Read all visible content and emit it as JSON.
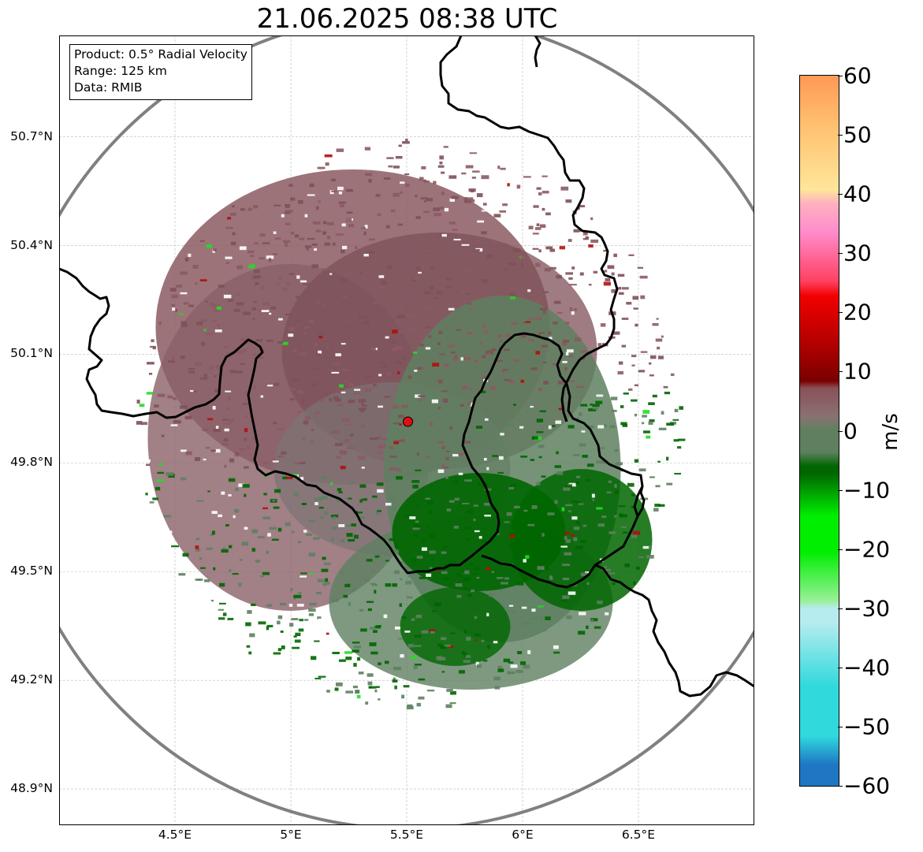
{
  "title": "21.06.2025 08:38 UTC",
  "info_box": {
    "product": "Product: 0.5° Radial Velocity",
    "range": "Range: 125 km",
    "data": "Data: RMIB"
  },
  "map": {
    "lon_range": [
      4.0,
      7.0
    ],
    "lat_range": [
      48.8,
      50.98
    ],
    "lat_ticks": [
      "50.7°N",
      "50.4°N",
      "50.1°N",
      "49.8°N",
      "49.5°N",
      "49.2°N",
      "48.9°N"
    ],
    "lat_values": [
      50.7,
      50.4,
      50.1,
      49.8,
      49.5,
      49.2,
      48.9
    ],
    "lon_ticks": [
      "4.5°E",
      "5°E",
      "5.5°E",
      "6°E",
      "6.5°E"
    ],
    "lon_values": [
      4.5,
      5.0,
      5.5,
      6.0,
      6.5
    ],
    "radar_site": {
      "lon": 5.505,
      "lat": 49.914,
      "color": "#dd1111"
    },
    "range_ring_km": 125,
    "border_color": "#000000",
    "ring_color": "#808080",
    "grid": true
  },
  "colorbar": {
    "label": "m/s",
    "min": -60,
    "max": 60,
    "tick_labels": [
      "60",
      "50",
      "40",
      "30",
      "20",
      "10",
      "0",
      "−10",
      "−20",
      "−30",
      "−40",
      "−50",
      "−60"
    ],
    "tick_values": [
      60,
      50,
      40,
      30,
      20,
      10,
      0,
      -10,
      -20,
      -30,
      -40,
      -50,
      -60
    ],
    "colors": {
      "neg_extreme": "#1f77c4",
      "cyan": "#2fd9dc",
      "pale_cyan": "#b6ecee",
      "bright_green": "#00ee00",
      "dark_green": "#006600",
      "grey_green": "#5e8060",
      "neutral": "#8a7272",
      "dark_red": "#7a0000",
      "red": "#f20000",
      "pink": "#ff8ccc",
      "pale_yellow": "#ffe699",
      "orange": "#ff9955"
    }
  }
}
